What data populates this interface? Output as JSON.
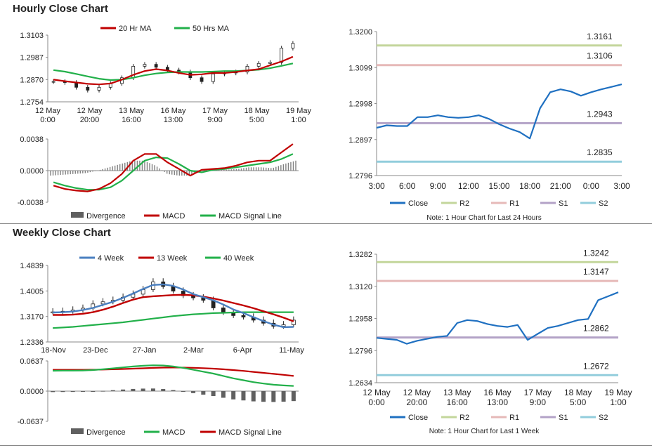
{
  "sections": {
    "hourly_title": "Hourly Close Chart",
    "weekly_title": "Weekly Close Chart"
  },
  "colors": {
    "red": "#c00000",
    "green": "#22b04a",
    "blue": "#1f70c1",
    "lightblue": "#4a7fc0",
    "r2": "#c3d69b",
    "r1": "#e6b9b8",
    "s1": "#b3a2c7",
    "s2": "#92cddc",
    "bar": "#606060"
  },
  "chart_data": [
    {
      "id": "hourly_price",
      "type": "candlestick",
      "legend": [
        "20 Hr MA",
        "50 Hrs MA"
      ],
      "yticks": [
        "1.3103",
        "1.2987",
        "1.2870",
        "1.2754"
      ],
      "ylim": [
        1.2754,
        1.3103
      ],
      "xticks": [
        [
          "12 May",
          "0:00"
        ],
        [
          "12 May",
          "20:00"
        ],
        [
          "13 May",
          "16:00"
        ],
        [
          "16 May",
          "13:00"
        ],
        [
          "17 May",
          "9:00"
        ],
        [
          "18 May",
          "5:00"
        ],
        [
          "19 May",
          "1:00"
        ]
      ],
      "series": [
        {
          "name": "20 Hr MA",
          "values": [
            1.287,
            1.2862,
            1.2855,
            1.2848,
            1.2845,
            1.285,
            1.287,
            1.2895,
            1.2915,
            1.2925,
            1.2918,
            1.2905,
            1.2895,
            1.2898,
            1.2905,
            1.2905,
            1.291,
            1.2918,
            1.2925,
            1.2945,
            1.2965,
            1.299
          ]
        },
        {
          "name": "50 Hrs MA",
          "values": [
            1.292,
            1.2912,
            1.29,
            1.2887,
            1.2875,
            1.2868,
            1.287,
            1.288,
            1.2893,
            1.2902,
            1.2908,
            1.291,
            1.291,
            1.291,
            1.2912,
            1.2915,
            1.2915,
            1.2918,
            1.2922,
            1.293,
            1.2942,
            1.2955
          ]
        },
        {
          "name": "Close",
          "values": [
            1.286,
            1.2855,
            1.283,
            1.2815,
            1.283,
            1.285,
            1.288,
            1.294,
            1.295,
            1.2935,
            1.292,
            1.291,
            1.288,
            1.286,
            1.29,
            1.2905,
            1.291,
            1.294,
            1.2955,
            1.296,
            1.3035,
            1.306
          ]
        }
      ]
    },
    {
      "id": "hourly_macd",
      "type": "line+bar",
      "legend": [
        "Divergence",
        "MACD",
        "MACD Signal Line"
      ],
      "yticks": [
        "0.0038",
        "0.0000",
        "-0.0038"
      ],
      "ylim": [
        -0.0038,
        0.0038
      ],
      "series": [
        {
          "name": "MACD",
          "values": [
            -0.0018,
            -0.0022,
            -0.0024,
            -0.0025,
            -0.0022,
            -0.0015,
            -0.0004,
            0.0012,
            0.002,
            0.002,
            0.001,
            0.0002,
            -0.0006,
            0.0001,
            0.0002,
            0.0003,
            0.0006,
            0.001,
            0.0012,
            0.0012,
            0.0022,
            0.0032
          ]
        },
        {
          "name": "MACD Signal Line",
          "values": [
            -0.0014,
            -0.0018,
            -0.0021,
            -0.0023,
            -0.0023,
            -0.002,
            -0.0012,
            0.0,
            0.0012,
            0.0016,
            0.0015,
            0.0008,
            0.0,
            -0.0002,
            0.0001,
            0.0002,
            0.0004,
            0.0006,
            0.0008,
            0.001,
            0.0014,
            0.002
          ]
        },
        {
          "name": "Divergence",
          "values": [
            -0.0006,
            -0.0005,
            -0.0004,
            -0.0003,
            0.0,
            0.0004,
            0.0008,
            0.0012,
            0.0012,
            0.0006,
            -0.0004,
            -0.0006,
            -0.0006,
            0.0002,
            0.0001,
            0.0001,
            0.0002,
            0.0004,
            0.0004,
            0.0003,
            0.0008,
            0.0012
          ]
        }
      ]
    },
    {
      "id": "hourly_levels",
      "type": "line",
      "yticks": [
        "1.3200",
        "1.3099",
        "1.2998",
        "1.2897",
        "1.2796"
      ],
      "ylim": [
        1.2796,
        1.32
      ],
      "xticks": [
        "3:00",
        "6:00",
        "9:00",
        "12:00",
        "15:00",
        "18:00",
        "21:00",
        "0:00",
        "3:00"
      ],
      "levels": [
        {
          "name": "R2",
          "value": 1.3161,
          "label": "1.3161"
        },
        {
          "name": "R1",
          "value": 1.3106,
          "label": "1.3106"
        },
        {
          "name": "S1",
          "value": 1.2943,
          "label": "1.2943"
        },
        {
          "name": "S2",
          "value": 1.2835,
          "label": "1.2835"
        }
      ],
      "series": [
        {
          "name": "Close",
          "x": [
            0,
            1,
            2,
            3,
            4,
            5,
            6,
            7,
            8,
            9,
            10,
            11,
            12,
            13,
            14,
            15,
            16,
            17,
            18,
            19,
            20,
            21,
            22,
            23,
            24
          ],
          "values": [
            1.293,
            1.2937,
            1.2935,
            1.2935,
            1.296,
            1.296,
            1.2965,
            1.296,
            1.2958,
            1.296,
            1.2965,
            1.2955,
            1.294,
            1.2928,
            1.2918,
            1.29,
            1.2985,
            1.303,
            1.3038,
            1.3032,
            1.302,
            1.303,
            1.3038,
            1.3045,
            1.3052
          ]
        }
      ],
      "legend": [
        "Close",
        "R2",
        "R1",
        "S1",
        "S2"
      ],
      "note": "Note: 1 Hour Chart for Last 24 Hours"
    },
    {
      "id": "weekly_price",
      "type": "candlestick",
      "legend": [
        "4 Week",
        "13 Week",
        "40 Week"
      ],
      "yticks": [
        "1.4839",
        "1.4005",
        "1.3170",
        "1.2336"
      ],
      "ylim": [
        1.2336,
        1.4839
      ],
      "xticks": [
        "18-Nov",
        "23-Dec",
        "27-Jan",
        "2-Mar",
        "6-Apr",
        "11-May"
      ],
      "series": [
        {
          "name": "4 Week",
          "values": [
            1.33,
            1.331,
            1.333,
            1.338,
            1.345,
            1.355,
            1.365,
            1.378,
            1.392,
            1.407,
            1.42,
            1.422,
            1.417,
            1.405,
            1.39,
            1.38,
            1.37,
            1.356,
            1.34,
            1.328,
            1.315,
            1.302,
            1.29,
            1.282,
            1.283
          ]
        },
        {
          "name": "13 Week",
          "values": [
            1.322,
            1.322,
            1.323,
            1.326,
            1.331,
            1.339,
            1.349,
            1.361,
            1.372,
            1.38,
            1.383,
            1.385,
            1.387,
            1.388,
            1.386,
            1.382,
            1.376,
            1.369,
            1.361,
            1.353,
            1.344,
            1.334,
            1.324,
            1.313,
            1.301
          ]
        },
        {
          "name": "40 Week",
          "values": [
            1.279,
            1.281,
            1.283,
            1.286,
            1.289,
            1.292,
            1.295,
            1.298,
            1.302,
            1.306,
            1.31,
            1.314,
            1.318,
            1.321,
            1.324,
            1.326,
            1.328,
            1.329,
            1.33,
            1.331,
            1.331,
            1.331,
            1.331,
            1.331,
            1.331
          ]
        },
        {
          "name": "Close",
          "values": [
            1.332,
            1.334,
            1.338,
            1.344,
            1.358,
            1.365,
            1.37,
            1.38,
            1.39,
            1.405,
            1.43,
            1.415,
            1.4,
            1.385,
            1.378,
            1.37,
            1.345,
            1.33,
            1.32,
            1.315,
            1.305,
            1.295,
            1.285,
            1.29,
            1.305
          ]
        }
      ]
    },
    {
      "id": "weekly_macd",
      "type": "line+bar",
      "legend": [
        "Divergence",
        "MACD",
        "MACD Signal Line"
      ],
      "yticks": [
        "0.0637",
        "0.0000",
        "-0.0637"
      ],
      "ylim": [
        -0.0637,
        0.0637
      ],
      "series": [
        {
          "name": "MACD",
          "values": [
            0.043,
            0.0432,
            0.0433,
            0.0436,
            0.0445,
            0.046,
            0.048,
            0.05,
            0.052,
            0.0535,
            0.0545,
            0.054,
            0.052,
            0.049,
            0.045,
            0.041,
            0.037,
            0.032,
            0.027,
            0.023,
            0.019,
            0.016,
            0.0135,
            0.012,
            0.011
          ]
        },
        {
          "name": "MACD Signal Line",
          "values": [
            0.045,
            0.045,
            0.045,
            0.045,
            0.0452,
            0.0455,
            0.046,
            0.0466,
            0.0474,
            0.0482,
            0.049,
            0.0496,
            0.0498,
            0.0497,
            0.0492,
            0.0484,
            0.0474,
            0.046,
            0.0444,
            0.0426,
            0.0406,
            0.0385,
            0.0364,
            0.0343,
            0.032
          ]
        },
        {
          "name": "Divergence",
          "values": [
            -0.002,
            -0.0018,
            -0.0017,
            -0.0014,
            -0.0007,
            0.0005,
            0.002,
            0.0034,
            0.0046,
            0.0053,
            0.0055,
            0.0044,
            0.0022,
            -0.0007,
            -0.0042,
            -0.0074,
            -0.0104,
            -0.014,
            -0.0174,
            -0.0196,
            -0.0216,
            -0.0225,
            -0.0229,
            -0.0223,
            -0.021
          ]
        }
      ]
    },
    {
      "id": "weekly_levels",
      "type": "line",
      "yticks": [
        "1.3282",
        "1.3120",
        "1.2958",
        "1.2796",
        "1.2634"
      ],
      "ylim": [
        1.2634,
        1.3282
      ],
      "xticks": [
        [
          "12 May",
          "0:00"
        ],
        [
          "12 May",
          "20:00"
        ],
        [
          "13 May",
          "16:00"
        ],
        [
          "16 May",
          "13:00"
        ],
        [
          "17 May",
          "9:00"
        ],
        [
          "18 May",
          "5:00"
        ],
        [
          "19 May",
          "1:00"
        ]
      ],
      "levels": [
        {
          "name": "R2",
          "value": 1.3242,
          "label": "1.3242"
        },
        {
          "name": "R1",
          "value": 1.3147,
          "label": "1.3147"
        },
        {
          "name": "S1",
          "value": 1.2862,
          "label": "1.2862"
        },
        {
          "name": "S2",
          "value": 1.2672,
          "label": "1.2672"
        }
      ],
      "series": [
        {
          "name": "Close",
          "values": [
            1.286,
            1.2855,
            1.285,
            1.283,
            1.2845,
            1.2855,
            1.2865,
            1.287,
            1.2935,
            1.295,
            1.2945,
            1.293,
            1.292,
            1.2915,
            1.2925,
            1.285,
            1.288,
            1.291,
            1.292,
            1.2935,
            1.295,
            1.2955,
            1.305,
            1.307,
            1.309
          ]
        }
      ],
      "legend": [
        "Close",
        "R2",
        "R1",
        "S1",
        "S2"
      ],
      "note": "Note: 1 Hour Chart for  Last 1 Week"
    }
  ]
}
